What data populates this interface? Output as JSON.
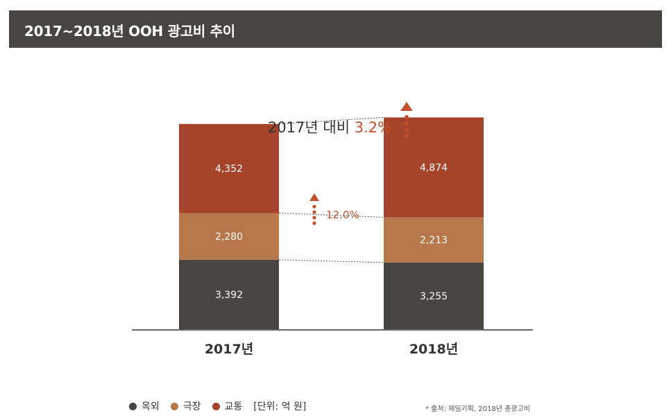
{
  "header": {
    "title": "2017~2018년 OOH 광고비 추이"
  },
  "chart_data": {
    "type": "bar",
    "stacked": true,
    "categories": [
      "2017년",
      "2018년"
    ],
    "series": [
      {
        "name": "옥외",
        "values": [
          3392,
          3255
        ],
        "color": "#474541",
        "labels": [
          "3,392",
          "3,255"
        ]
      },
      {
        "name": "극장",
        "values": [
          2280,
          2213
        ],
        "color": "#b7774b",
        "labels": [
          "2,280",
          "2,213"
        ]
      },
      {
        "name": "교통",
        "values": [
          4352,
          4874
        ],
        "color": "#a5432b",
        "labels": [
          "4,352",
          "4,874"
        ]
      }
    ],
    "ylim": [
      0,
      11000
    ],
    "annotations": {
      "total_change_prefix": "2017년 대비 ",
      "total_change_value": "3.2%",
      "traffic_change_value": "12.0%",
      "accent_color": "#c2502f"
    }
  },
  "legend": {
    "items": [
      {
        "label": "옥외",
        "color": "#474541"
      },
      {
        "label": "극장",
        "color": "#b7774b"
      },
      {
        "label": "교통",
        "color": "#a5432b"
      }
    ],
    "unit": "[단위: 억 원]"
  },
  "source": "* 출처: 제일기획, 2018년 총광고비"
}
